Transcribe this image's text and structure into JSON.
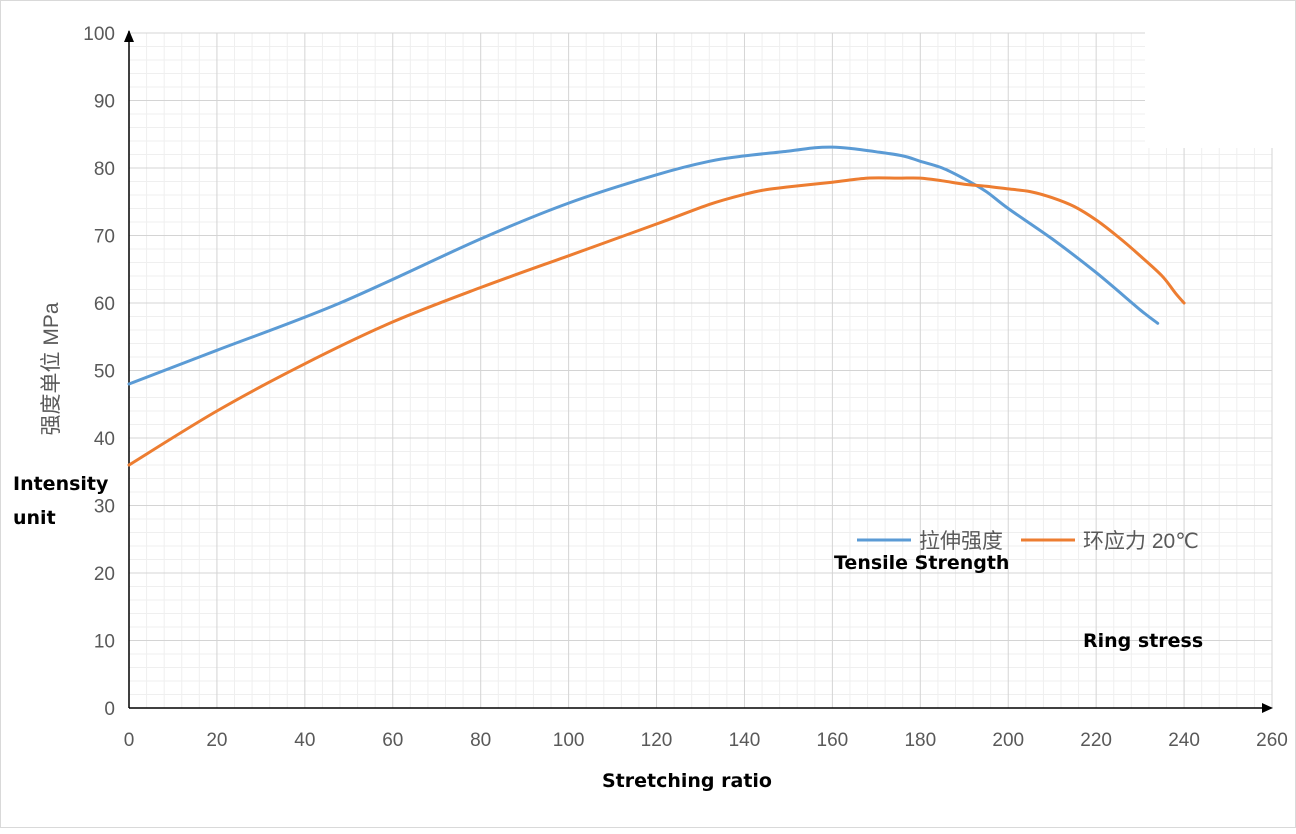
{
  "chart_data": {
    "type": "line",
    "xlabel": "Stretching ratio",
    "ylabel": "强度单位 MPa",
    "ylabel_translation": "Intensity unit",
    "xlim": [
      0,
      260
    ],
    "ylim": [
      0,
      100
    ],
    "x_ticks": [
      0,
      20,
      40,
      60,
      80,
      100,
      120,
      140,
      160,
      180,
      200,
      220,
      240,
      260
    ],
    "y_ticks": [
      0,
      10,
      20,
      30,
      40,
      50,
      60,
      70,
      80,
      90,
      100
    ],
    "grid": true,
    "legend_position": "bottom-right",
    "series": [
      {
        "name": "拉伸强度",
        "translation": "Tensile Strength",
        "color": "#5b9bd5",
        "points": [
          [
            0,
            48
          ],
          [
            20,
            53
          ],
          [
            48,
            60
          ],
          [
            80,
            69.5
          ],
          [
            100,
            74.8
          ],
          [
            120,
            79
          ],
          [
            132,
            81
          ],
          [
            140,
            81.8
          ],
          [
            150,
            82.5
          ],
          [
            156,
            83
          ],
          [
            160,
            83.1
          ],
          [
            164,
            82.9
          ],
          [
            170,
            82.4
          ],
          [
            176,
            81.8
          ],
          [
            180,
            81
          ],
          [
            185,
            80
          ],
          [
            190,
            78.4
          ],
          [
            195,
            76.5
          ],
          [
            200,
            74
          ],
          [
            210,
            69.5
          ],
          [
            220,
            64.5
          ],
          [
            230,
            59
          ],
          [
            234,
            57
          ]
        ]
      },
      {
        "name": "环应力 20℃",
        "translation": "Ring stress",
        "color": "#ed7d31",
        "points": [
          [
            0,
            36
          ],
          [
            20,
            44
          ],
          [
            40,
            51
          ],
          [
            60,
            57.2
          ],
          [
            80,
            62.3
          ],
          [
            100,
            67
          ],
          [
            120,
            71.7
          ],
          [
            132,
            74.6
          ],
          [
            140,
            76.1
          ],
          [
            145,
            76.8
          ],
          [
            150,
            77.2
          ],
          [
            160,
            77.9
          ],
          [
            168,
            78.5
          ],
          [
            175,
            78.5
          ],
          [
            180,
            78.5
          ],
          [
            185,
            78.1
          ],
          [
            190,
            77.6
          ],
          [
            195,
            77.3
          ],
          [
            200,
            76.9
          ],
          [
            205,
            76.5
          ],
          [
            210,
            75.6
          ],
          [
            215,
            74.3
          ],
          [
            220,
            72.3
          ],
          [
            225,
            69.8
          ],
          [
            230,
            67
          ],
          [
            235,
            64
          ],
          [
            238,
            61.5
          ],
          [
            240,
            60
          ]
        ]
      }
    ]
  }
}
